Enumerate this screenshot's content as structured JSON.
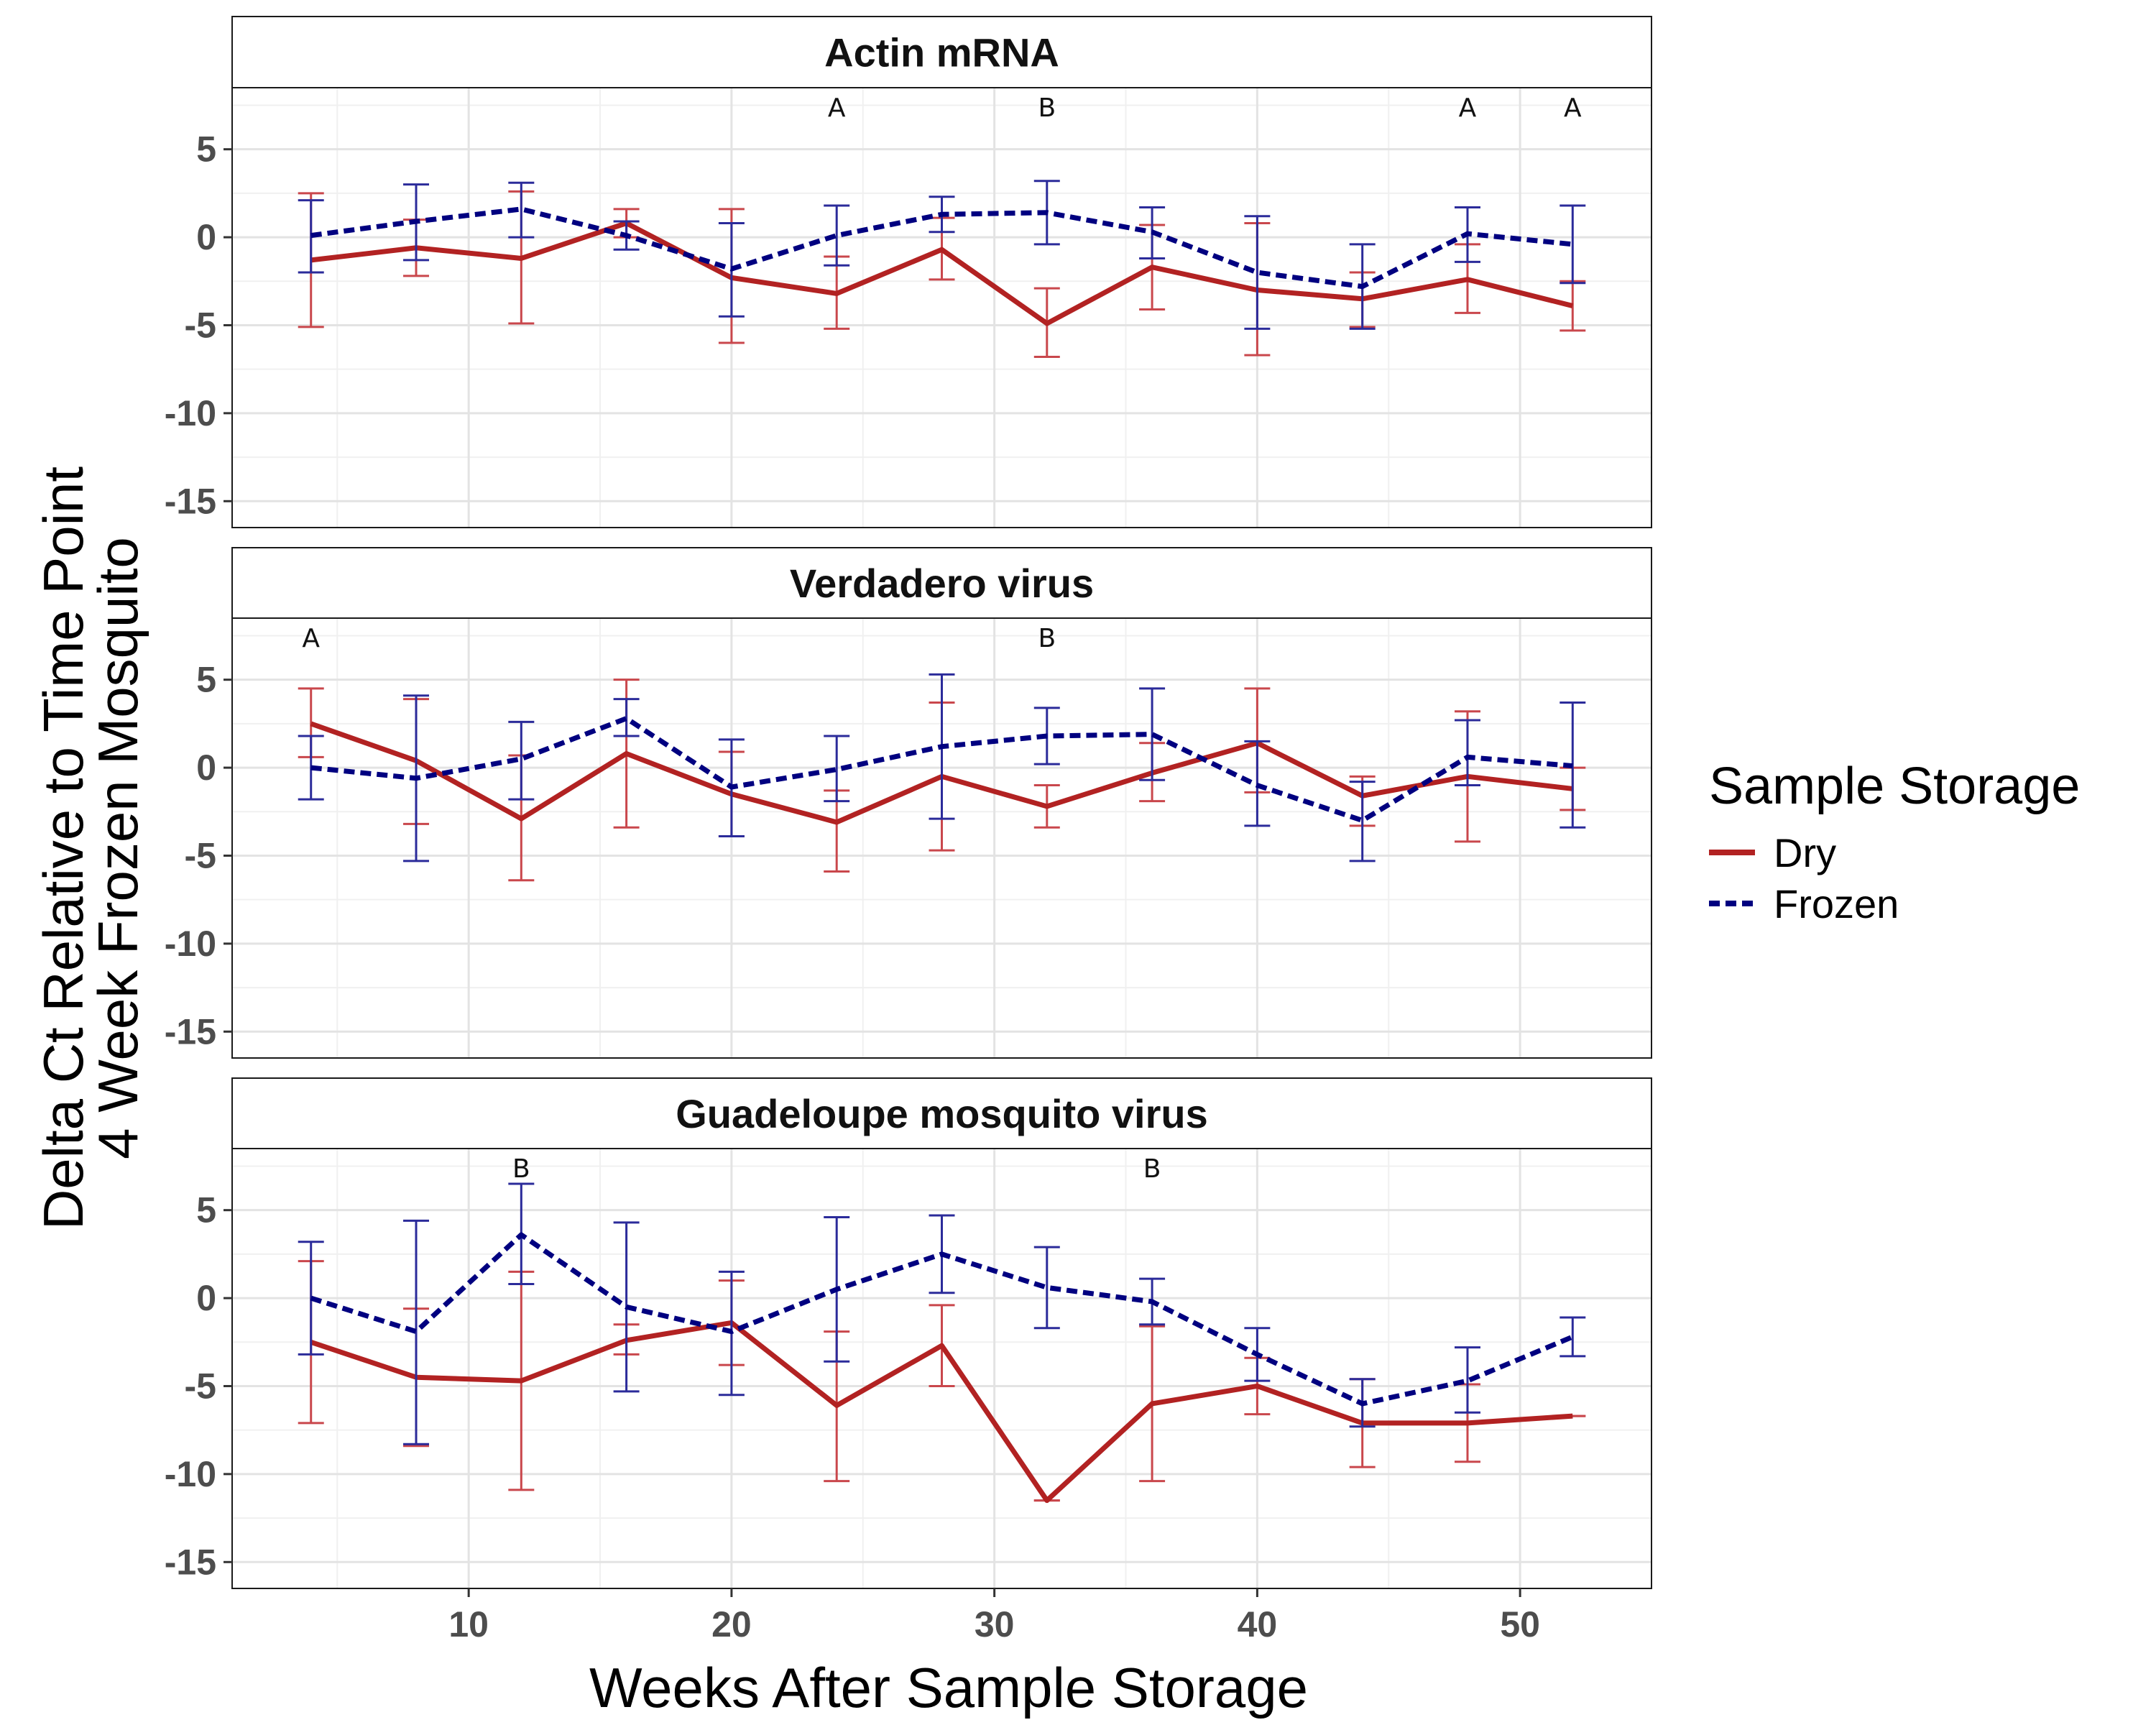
{
  "chart_data": {
    "type": "line",
    "xlabel": "Weeks After Sample Storage",
    "ylabel_lines": [
      "Delta Ct Relative to Time Point",
      "4 Week Frozen Mosquito"
    ],
    "xlim": [
      1,
      55
    ],
    "ylim": [
      -16.5,
      8.5
    ],
    "x_ticks": [
      10,
      20,
      30,
      40,
      50
    ],
    "y_ticks": [
      5,
      0,
      -5,
      -10,
      -15
    ],
    "x_tick_labels": [
      "10",
      "20",
      "30",
      "40",
      "50"
    ],
    "y_tick_labels": [
      "5",
      "0",
      "-5",
      "-10",
      "-15"
    ],
    "grid": true,
    "legend": {
      "title": "Sample Storage",
      "position": "right",
      "entries": [
        {
          "label": "Dry",
          "color": "#b22222",
          "dash": "solid"
        },
        {
          "label": "Frozen",
          "color": "#000080",
          "dash": "dashed"
        }
      ]
    },
    "x": [
      4,
      8,
      12,
      16,
      20,
      24,
      28,
      32,
      36,
      40,
      44,
      48,
      52
    ],
    "panels": [
      {
        "title": "Actin mRNA",
        "series": [
          {
            "name": "Dry",
            "values": [
              -1.3,
              -0.6,
              -1.2,
              0.8,
              -2.3,
              -3.2,
              -0.7,
              -4.9,
              -1.7,
              -3.0,
              -3.5,
              -2.4,
              -3.9
            ],
            "err_low": [
              -5.1,
              -2.2,
              -4.9,
              0.0,
              -6.0,
              -5.2,
              -2.4,
              -6.8,
              -4.1,
              -6.7,
              -5.1,
              -4.3,
              -5.3
            ],
            "err_high": [
              2.5,
              1.0,
              2.6,
              1.6,
              1.6,
              -1.1,
              1.1,
              -2.9,
              0.7,
              0.8,
              -2.0,
              -0.4,
              -2.5
            ]
          },
          {
            "name": "Frozen",
            "values": [
              0.1,
              0.9,
              1.6,
              0.1,
              -1.8,
              0.1,
              1.3,
              1.4,
              0.3,
              -2.0,
              -2.8,
              0.2,
              -0.4
            ],
            "err_low": [
              -2.0,
              -1.3,
              0.0,
              -0.7,
              -4.5,
              -1.6,
              0.3,
              -0.4,
              -1.2,
              -5.2,
              -5.2,
              -1.4,
              -2.6
            ],
            "err_high": [
              2.1,
              3.0,
              3.1,
              0.9,
              0.8,
              1.8,
              2.3,
              3.2,
              1.7,
              1.2,
              -0.4,
              1.7,
              1.8
            ]
          }
        ],
        "annotations": [
          {
            "x": 24,
            "text": "A"
          },
          {
            "x": 32,
            "text": "B"
          },
          {
            "x": 48,
            "text": "A"
          },
          {
            "x": 52,
            "text": "A"
          }
        ]
      },
      {
        "title": "Verdadero virus",
        "series": [
          {
            "name": "Dry",
            "values": [
              2.5,
              0.4,
              -2.9,
              0.8,
              -1.5,
              -3.1,
              -0.5,
              -2.2,
              -0.3,
              1.4,
              -1.6,
              -0.5,
              -1.2
            ],
            "err_low": [
              0.6,
              -3.2,
              -6.4,
              -3.4,
              -3.9,
              -5.9,
              -4.7,
              -3.4,
              -1.9,
              -1.4,
              -3.3,
              -4.2,
              -2.4
            ],
            "err_high": [
              4.5,
              3.9,
              0.7,
              5.0,
              0.9,
              -1.3,
              3.7,
              -1.0,
              1.4,
              4.5,
              -0.5,
              3.2,
              0.0
            ]
          },
          {
            "name": "Frozen",
            "values": [
              0.0,
              -0.6,
              0.5,
              2.8,
              -1.1,
              -0.1,
              1.2,
              1.8,
              1.9,
              -1.0,
              -3.0,
              0.6,
              0.1
            ],
            "err_low": [
              -1.8,
              -5.3,
              -1.8,
              1.8,
              -3.9,
              -1.9,
              -2.9,
              0.2,
              -0.7,
              -3.3,
              -5.3,
              -1.0,
              -3.4
            ],
            "err_high": [
              1.8,
              4.1,
              2.6,
              3.9,
              1.6,
              1.8,
              5.3,
              3.4,
              4.5,
              1.5,
              -0.8,
              2.7,
              3.7
            ]
          }
        ],
        "annotations": [
          {
            "x": 4,
            "text": "A"
          },
          {
            "x": 32,
            "text": "B"
          }
        ]
      },
      {
        "title": "Guadeloupe mosquito virus",
        "series": [
          {
            "name": "Dry",
            "values": [
              -2.5,
              -4.5,
              -4.7,
              -2.4,
              -1.4,
              -6.1,
              -2.7,
              -11.5,
              -6.0,
              -5.0,
              -7.1,
              -7.1,
              -6.7
            ],
            "err_low": [
              -7.1,
              -8.4,
              -10.9,
              -3.2,
              -3.8,
              -10.4,
              -5.0,
              -11.5,
              -10.4,
              -6.6,
              -9.6,
              -9.3,
              -6.7
            ],
            "err_high": [
              2.1,
              -0.6,
              1.5,
              -1.5,
              1.0,
              -1.9,
              -0.4,
              -11.5,
              -1.6,
              -3.4,
              -4.6,
              -4.9,
              -6.7
            ]
          },
          {
            "name": "Frozen",
            "values": [
              0.0,
              -1.9,
              3.6,
              -0.5,
              -1.9,
              0.5,
              2.5,
              0.6,
              -0.2,
              -3.2,
              -6.0,
              -4.7,
              -2.2
            ],
            "err_low": [
              -3.2,
              -8.3,
              0.8,
              -5.3,
              -5.5,
              -3.6,
              0.3,
              -1.7,
              -1.5,
              -4.7,
              -7.3,
              -6.5,
              -3.3
            ],
            "err_high": [
              3.2,
              4.4,
              6.5,
              4.3,
              1.5,
              4.6,
              4.7,
              2.9,
              1.1,
              -1.7,
              -4.6,
              -2.8,
              -1.1
            ]
          }
        ],
        "annotations": [
          {
            "x": 12,
            "text": "B"
          },
          {
            "x": 36,
            "text": "B"
          }
        ]
      }
    ]
  }
}
